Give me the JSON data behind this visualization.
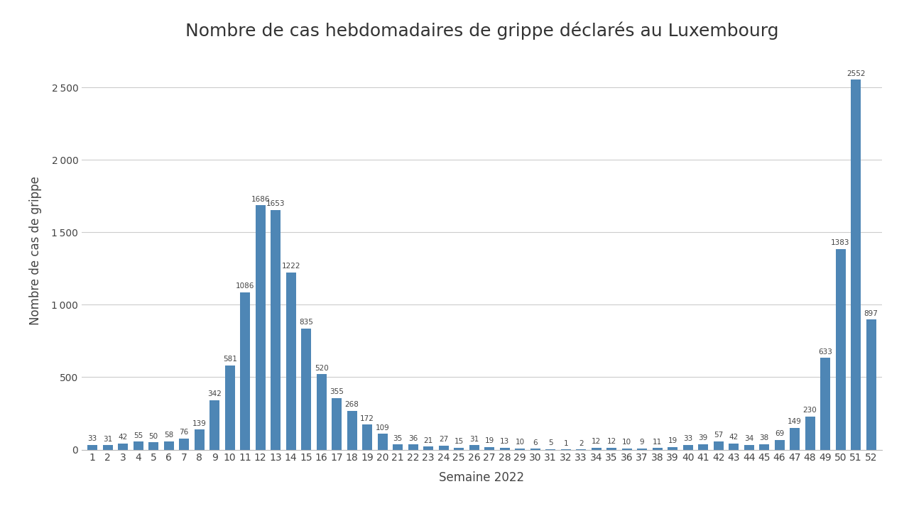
{
  "title": "Nombre de cas hebdomadaires de grippe déclarés au Luxembourg",
  "xlabel": "Semaine 2022",
  "ylabel": "Nombre de cas de grippe",
  "weeks": [
    1,
    2,
    3,
    4,
    5,
    6,
    7,
    8,
    9,
    10,
    11,
    12,
    13,
    14,
    15,
    16,
    17,
    18,
    19,
    20,
    21,
    22,
    23,
    24,
    25,
    26,
    27,
    28,
    29,
    30,
    31,
    32,
    33,
    34,
    35,
    36,
    37,
    38,
    39,
    40,
    41,
    42,
    43,
    44,
    45,
    46,
    47,
    48,
    49,
    50,
    51,
    52
  ],
  "values": [
    33,
    31,
    42,
    55,
    50,
    58,
    76,
    139,
    342,
    581,
    1086,
    1686,
    1653,
    1222,
    835,
    520,
    355,
    268,
    172,
    109,
    35,
    36,
    21,
    27,
    15,
    31,
    19,
    13,
    10,
    6,
    5,
    1,
    2,
    12,
    12,
    10,
    9,
    11,
    19,
    33,
    39,
    57,
    42,
    34,
    38,
    69,
    149,
    230,
    633,
    1383,
    2552,
    897
  ],
  "bar_color": "#4e86b5",
  "background_color": "#ffffff",
  "title_fontsize": 18,
  "label_fontsize": 12,
  "tick_fontsize": 10,
  "annotation_fontsize": 7.5,
  "ylim": [
    0,
    2750
  ],
  "yticks": [
    0,
    500,
    1000,
    1500,
    2000,
    2500
  ]
}
